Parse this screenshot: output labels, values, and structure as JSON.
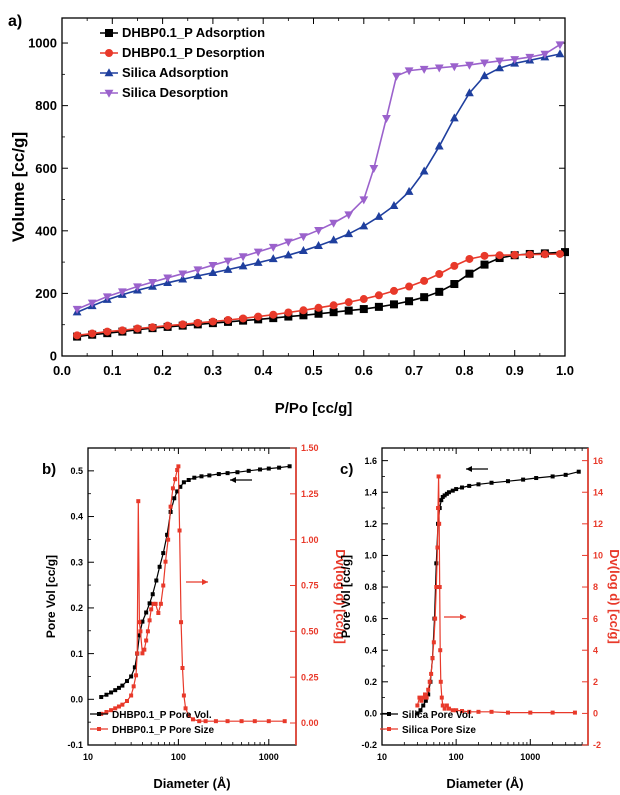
{
  "colors": {
    "black": "#000000",
    "red": "#e8392a",
    "blue": "#1f3f9e",
    "violet": "#9b62cc"
  },
  "chart_data": [
    {
      "panel_label": "a)",
      "type": "line",
      "xlabel": "P/Po [cc/g]",
      "ylabel": "Volume [cc/g]",
      "xlim": [
        0.0,
        1.0
      ],
      "ylim": [
        0,
        1080
      ],
      "xticks": [
        0.0,
        0.1,
        0.2,
        0.3,
        0.4,
        0.5,
        0.6,
        0.7,
        0.8,
        0.9,
        1.0
      ],
      "xtick_labels": [
        "0.0",
        "0.1",
        "0.2",
        "0.3",
        "0.4",
        "0.5",
        "0.6",
        "0.7",
        "0.8",
        "0.9",
        "1.0"
      ],
      "yticks": [
        0,
        200,
        400,
        600,
        800,
        1000
      ],
      "ytick_labels": [
        "0",
        "200",
        "400",
        "600",
        "800",
        "1000"
      ],
      "grid": false,
      "legend_position": "top-left",
      "series": [
        {
          "name": "DHBP0.1_P Adsorption",
          "color": "black",
          "marker": "square",
          "x": [
            0.03,
            0.06,
            0.09,
            0.12,
            0.15,
            0.18,
            0.21,
            0.24,
            0.27,
            0.3,
            0.33,
            0.36,
            0.39,
            0.42,
            0.45,
            0.48,
            0.51,
            0.54,
            0.57,
            0.6,
            0.63,
            0.66,
            0.69,
            0.72,
            0.75,
            0.78,
            0.81,
            0.84,
            0.87,
            0.9,
            0.93,
            0.96,
            1.0
          ],
          "y": [
            62,
            68,
            73,
            78,
            84,
            89,
            93,
            97,
            101,
            105,
            109,
            113,
            117,
            121,
            126,
            130,
            135,
            140,
            145,
            150,
            157,
            165,
            175,
            188,
            205,
            230,
            263,
            292,
            313,
            322,
            326,
            328,
            332
          ]
        },
        {
          "name": "DHBP0.1_P Desorption",
          "color": "red",
          "marker": "circle",
          "x": [
            0.03,
            0.06,
            0.09,
            0.12,
            0.15,
            0.18,
            0.21,
            0.24,
            0.27,
            0.3,
            0.33,
            0.36,
            0.39,
            0.42,
            0.45,
            0.48,
            0.51,
            0.54,
            0.57,
            0.6,
            0.63,
            0.66,
            0.69,
            0.72,
            0.75,
            0.78,
            0.81,
            0.84,
            0.87,
            0.9,
            0.93,
            0.96,
            0.99
          ],
          "y": [
            66,
            72,
            78,
            82,
            88,
            92,
            97,
            101,
            106,
            110,
            115,
            120,
            126,
            132,
            139,
            146,
            154,
            162,
            172,
            182,
            194,
            208,
            222,
            240,
            262,
            288,
            310,
            320,
            322,
            323,
            324,
            325,
            326
          ]
        },
        {
          "name": "Silica Adsorption",
          "color": "blue",
          "marker": "triangle-up",
          "x": [
            0.03,
            0.06,
            0.09,
            0.12,
            0.15,
            0.18,
            0.21,
            0.24,
            0.27,
            0.3,
            0.33,
            0.36,
            0.39,
            0.42,
            0.45,
            0.48,
            0.51,
            0.54,
            0.57,
            0.6,
            0.63,
            0.66,
            0.69,
            0.72,
            0.75,
            0.78,
            0.81,
            0.84,
            0.87,
            0.9,
            0.93,
            0.96,
            0.99
          ],
          "y": [
            140,
            160,
            180,
            196,
            210,
            222,
            234,
            245,
            256,
            266,
            276,
            287,
            298,
            310,
            322,
            336,
            352,
            370,
            390,
            415,
            445,
            480,
            525,
            590,
            670,
            760,
            840,
            895,
            920,
            935,
            945,
            955,
            965
          ]
        },
        {
          "name": "Silica Desorption",
          "color": "violet",
          "marker": "triangle-down",
          "x": [
            0.03,
            0.06,
            0.09,
            0.12,
            0.15,
            0.18,
            0.21,
            0.24,
            0.27,
            0.3,
            0.33,
            0.36,
            0.39,
            0.42,
            0.45,
            0.48,
            0.51,
            0.54,
            0.57,
            0.6,
            0.62,
            0.645,
            0.665,
            0.69,
            0.72,
            0.75,
            0.78,
            0.81,
            0.84,
            0.87,
            0.9,
            0.93,
            0.96,
            0.99
          ],
          "y": [
            150,
            170,
            190,
            206,
            222,
            236,
            250,
            263,
            276,
            290,
            304,
            318,
            333,
            348,
            365,
            382,
            402,
            425,
            452,
            500,
            600,
            760,
            895,
            912,
            917,
            921,
            925,
            930,
            937,
            943,
            948,
            955,
            965,
            995
          ]
        }
      ]
    },
    {
      "panel_label": "b)",
      "type": "line",
      "xlabel": "Diameter (Å)",
      "ylabel": "Pore Vol [cc/g]",
      "y2label": "Dv(log d) [cc/g]",
      "xscale": "log",
      "xlim": [
        10,
        2000
      ],
      "ylim": [
        -0.1,
        0.55
      ],
      "y2lim": [
        -0.12,
        1.5
      ],
      "xticks": [
        10,
        100,
        1000
      ],
      "xtick_labels": [
        "10",
        "100",
        "1000"
      ],
      "yticks": [
        -0.1,
        0.0,
        0.1,
        0.2,
        0.3,
        0.4,
        0.5
      ],
      "ytick_labels": [
        "-0.1",
        "0.0",
        "0.1",
        "0.2",
        "0.3",
        "0.4",
        "0.5"
      ],
      "y2ticks": [
        0.0,
        0.25,
        0.5,
        0.75,
        1.0,
        1.25,
        1.5
      ],
      "y2tick_labels": [
        "0.00",
        "0.25",
        "0.50",
        "0.75",
        "1.00",
        "1.25",
        "1.50"
      ],
      "grid": false,
      "legend_position": "bottom-right",
      "series": [
        {
          "name": "DHBP0.1_P Pore Vol.",
          "axis": "left",
          "color": "black",
          "marker": "square",
          "x": [
            14,
            16,
            18,
            20,
            22,
            24,
            27,
            30,
            33,
            35,
            37,
            40,
            44,
            48,
            52,
            57,
            62,
            68,
            75,
            82,
            90,
            97,
            105,
            115,
            130,
            150,
            180,
            220,
            280,
            350,
            450,
            600,
            800,
            1000,
            1300,
            1700
          ],
          "y": [
            0.005,
            0.01,
            0.015,
            0.02,
            0.025,
            0.03,
            0.04,
            0.05,
            0.07,
            0.1,
            0.14,
            0.17,
            0.19,
            0.21,
            0.23,
            0.26,
            0.29,
            0.32,
            0.36,
            0.41,
            0.44,
            0.455,
            0.465,
            0.475,
            0.48,
            0.485,
            0.488,
            0.49,
            0.493,
            0.495,
            0.497,
            0.5,
            0.503,
            0.505,
            0.507,
            0.51
          ]
        },
        {
          "name": "DHBP0.1_P Pore Size",
          "axis": "right",
          "color": "red",
          "marker": "square",
          "x": [
            14,
            16,
            18,
            20,
            22,
            24,
            27,
            30,
            32,
            34,
            35,
            36,
            37,
            38,
            40,
            42,
            44,
            46,
            48,
            50,
            53,
            56,
            60,
            64,
            68,
            72,
            77,
            82,
            87,
            92,
            97,
            100,
            103,
            107,
            111,
            115,
            120,
            130,
            145,
            170,
            200,
            260,
            350,
            500,
            700,
            1000,
            1500
          ],
          "y": [
            0.05,
            0.06,
            0.07,
            0.08,
            0.09,
            0.1,
            0.12,
            0.15,
            0.2,
            0.26,
            0.38,
            1.21,
            0.55,
            0.5,
            0.38,
            0.4,
            0.45,
            0.5,
            0.56,
            0.62,
            0.65,
            0.65,
            0.6,
            0.65,
            0.75,
            0.88,
            1.0,
            1.18,
            1.28,
            1.33,
            1.38,
            1.4,
            1.05,
            0.55,
            0.3,
            0.15,
            0.08,
            0.04,
            0.02,
            0.01,
            0.01,
            0.01,
            0.01,
            0.01,
            0.01,
            0.01,
            0.01
          ]
        }
      ]
    },
    {
      "panel_label": "c)",
      "type": "line",
      "xlabel": "Diameter (Å)",
      "ylabel": "Pore Vol [cc/g]",
      "y2label": "Dv(log d) [cc/g]",
      "xscale": "log",
      "xlim": [
        10,
        6000
      ],
      "ylim": [
        -0.2,
        1.68
      ],
      "y2lim": [
        -2,
        16.8
      ],
      "xticks": [
        10,
        100,
        1000
      ],
      "xtick_labels": [
        "10",
        "100",
        "1000"
      ],
      "yticks": [
        -0.2,
        0.0,
        0.2,
        0.4,
        0.6,
        0.8,
        1.0,
        1.2,
        1.4,
        1.6
      ],
      "ytick_labels": [
        "-0.2",
        "0.0",
        "0.2",
        "0.4",
        "0.6",
        "0.8",
        "1.0",
        "1.2",
        "1.4",
        "1.6"
      ],
      "y2ticks": [
        -2,
        0,
        2,
        4,
        6,
        8,
        10,
        12,
        14,
        16
      ],
      "y2tick_labels": [
        "-2",
        "0",
        "2",
        "4",
        "6",
        "8",
        "10",
        "12",
        "14",
        "16"
      ],
      "grid": false,
      "legend_position": "bottom-right",
      "series": [
        {
          "name": "Silica Pore Vol.",
          "axis": "left",
          "color": "black",
          "marker": "square",
          "x": [
            30,
            33,
            36,
            39,
            42,
            45,
            48,
            51,
            54,
            57,
            60,
            63,
            66,
            70,
            75,
            80,
            90,
            100,
            120,
            150,
            200,
            300,
            500,
            800,
            1200,
            2000,
            3000,
            4500
          ],
          "y": [
            0.0,
            0.02,
            0.05,
            0.08,
            0.12,
            0.2,
            0.35,
            0.6,
            0.95,
            1.2,
            1.3,
            1.35,
            1.37,
            1.38,
            1.39,
            1.4,
            1.41,
            1.42,
            1.43,
            1.44,
            1.45,
            1.46,
            1.47,
            1.48,
            1.49,
            1.5,
            1.51,
            1.53
          ]
        },
        {
          "name": "Silica Pore Size",
          "axis": "right",
          "color": "red",
          "marker": "square",
          "x": [
            30,
            32,
            34,
            36,
            38,
            40,
            42,
            44,
            46,
            48,
            50,
            52,
            54,
            56,
            57,
            58,
            59,
            60,
            61,
            62,
            64,
            66,
            70,
            75,
            80,
            90,
            100,
            120,
            150,
            200,
            300,
            500,
            1000,
            2000,
            4000
          ],
          "y": [
            0.5,
            1.0,
            0.8,
            1.0,
            1.2,
            1.0,
            1.5,
            2.0,
            2.5,
            3.5,
            4.5,
            6.0,
            8.0,
            10.5,
            13.0,
            15.0,
            12.0,
            8.0,
            4.0,
            2.0,
            1.0,
            0.5,
            0.3,
            0.5,
            0.3,
            0.2,
            0.2,
            0.15,
            0.1,
            0.1,
            0.1,
            0.05,
            0.05,
            0.05,
            0.05
          ]
        }
      ]
    }
  ]
}
